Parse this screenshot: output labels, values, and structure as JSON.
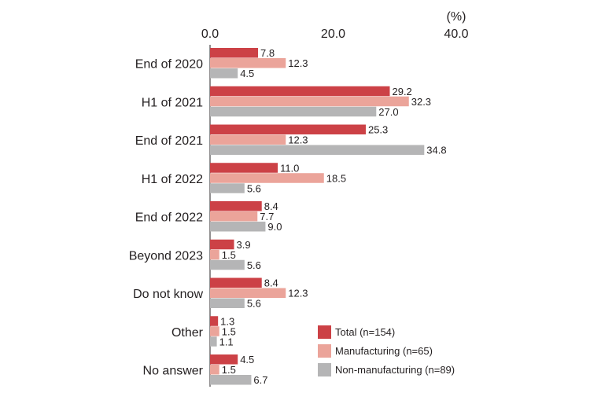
{
  "chart_data": {
    "type": "bar",
    "orientation": "horizontal",
    "unit_label": "(%)",
    "xlim": [
      0,
      40
    ],
    "x_ticks": [
      "0.0",
      "20.0",
      "40.0"
    ],
    "x_tick_values": [
      0,
      20,
      40
    ],
    "grid": false,
    "legend_position": "bottom-right",
    "categories": [
      "End of 2020",
      "H1 of 2021",
      "End of 2021",
      "H1 of 2022",
      "End of 2022",
      "Beyond 2023",
      "Do not know",
      "Other",
      "No answer"
    ],
    "series": [
      {
        "name": "Total (n=154)",
        "color": "#cc4146",
        "values": [
          7.8,
          29.2,
          25.3,
          11.0,
          8.4,
          3.9,
          8.4,
          1.3,
          4.5
        ],
        "labels": [
          "7.8",
          "29.2",
          "25.3",
          "11.0",
          "8.4",
          "3.9",
          "8.4",
          "1.3",
          "4.5"
        ]
      },
      {
        "name": "Manufacturing (n=65)",
        "color": "#eba49a",
        "values": [
          12.3,
          32.3,
          12.3,
          18.5,
          7.7,
          1.5,
          12.3,
          1.5,
          1.5
        ],
        "labels": [
          "12.3",
          "32.3",
          "12.3",
          "18.5",
          "7.7",
          "1.5",
          "12.3",
          "1.5",
          "1.5"
        ]
      },
      {
        "name": "Non-manufacturing (n=89)",
        "color": "#b5b5b6",
        "values": [
          4.5,
          27.0,
          34.8,
          5.6,
          9.0,
          5.6,
          5.6,
          1.1,
          6.7
        ],
        "labels": [
          "4.5",
          "27.0",
          "34.8",
          "5.6",
          "9.0",
          "5.6",
          "5.6",
          "1.1",
          "6.7"
        ]
      }
    ]
  }
}
